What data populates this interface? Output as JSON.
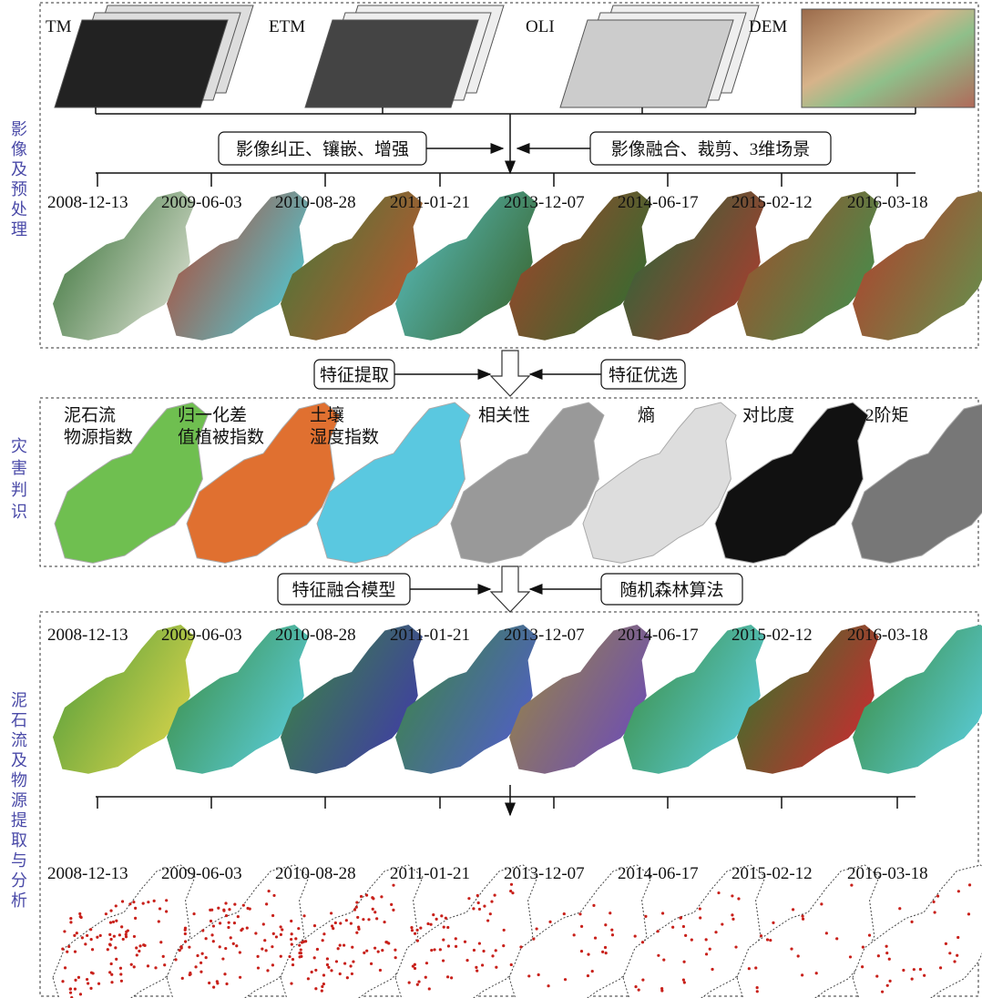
{
  "sections": [
    {
      "label": "影像及预处理"
    },
    {
      "label": "灾害判识"
    },
    {
      "label": "泥石流及物源提取与分析"
    }
  ],
  "sensors": [
    "TM",
    "ETM",
    "OLI",
    "DEM"
  ],
  "steps1": [
    "影像纠正、镶嵌、增强",
    "影像融合、裁剪、3维场景"
  ],
  "dates_preprocessed": [
    "2008-12-13",
    "2009-06-03",
    "2010-08-28",
    "2011-01-21",
    "2013-12-07",
    "2014-06-17",
    "2015-02-12",
    "2016-03-18"
  ],
  "steps2": [
    "特征提取",
    "特征优选"
  ],
  "features": [
    [
      "泥石流",
      "物源指数"
    ],
    [
      "归一化差",
      "值植被指数"
    ],
    [
      "土壤",
      "湿度指数"
    ],
    [
      "相关性"
    ],
    [
      "熵"
    ],
    [
      "对比度"
    ],
    [
      "2阶矩"
    ]
  ],
  "steps3": [
    "特征融合模型",
    "随机森林算法"
  ],
  "dates_classified": [
    "2008-12-13",
    "2009-06-03",
    "2010-08-28",
    "2011-01-21",
    "2013-12-07",
    "2014-06-17",
    "2015-02-12",
    "2016-03-18"
  ],
  "dates_extracted": [
    "2008-12-13",
    "2009-06-03",
    "2010-08-28",
    "2011-01-21",
    "2013-12-07",
    "2014-06-17",
    "2015-02-12",
    "2016-03-18"
  ]
}
